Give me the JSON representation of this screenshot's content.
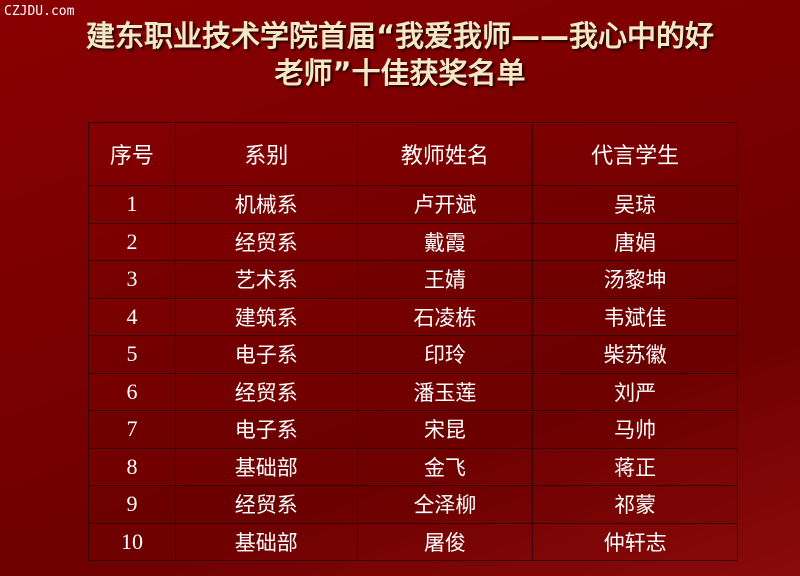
{
  "watermark": "CZJDU.com",
  "title": {
    "line1": "建东职业技术学院首届“我爱我师——我心中的好",
    "line2": "老师”十佳获奖名单"
  },
  "table": {
    "headers": [
      "序号",
      "系别",
      "教师姓名",
      "代言学生"
    ],
    "rows": [
      [
        "1",
        "机械系",
        "卢开斌",
        "吴琼"
      ],
      [
        "2",
        "经贸系",
        "戴霞",
        "唐娟"
      ],
      [
        "3",
        "艺术系",
        "王婧",
        "汤黎坤"
      ],
      [
        "4",
        "建筑系",
        "石凌栋",
        "韦斌佳"
      ],
      [
        "5",
        "电子系",
        "印玲",
        "柴苏徽"
      ],
      [
        "6",
        "经贸系",
        "潘玉莲",
        "刘严"
      ],
      [
        "7",
        "电子系",
        "宋昆",
        "马帅"
      ],
      [
        "8",
        "基础部",
        "金飞",
        "蒋正"
      ],
      [
        "9",
        "经贸系",
        "仝泽柳",
        "祁蒙"
      ],
      [
        "10",
        "基础部",
        "屠俊",
        "仲轩志"
      ]
    ]
  }
}
